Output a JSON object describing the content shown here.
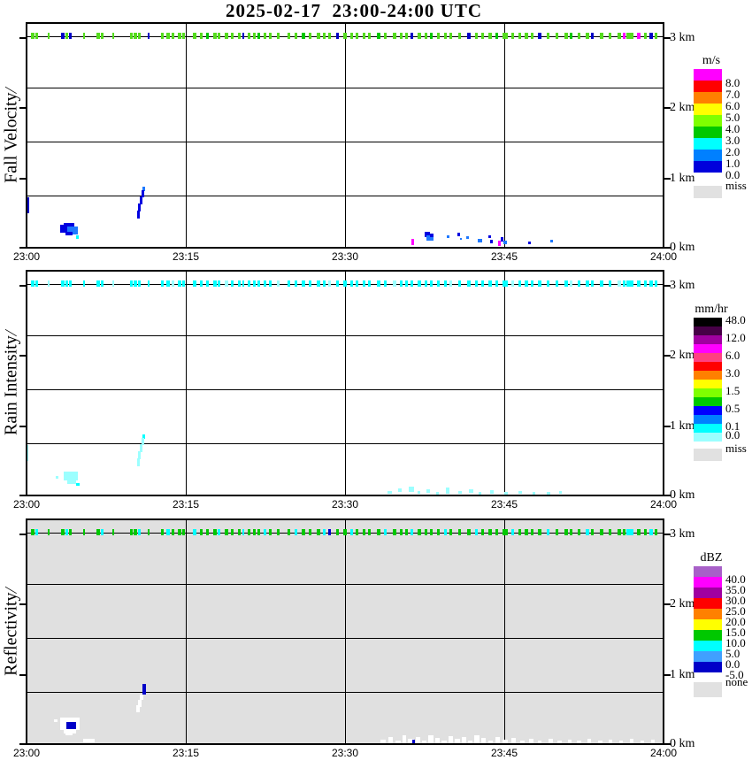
{
  "title": "2025-02-17  23:00-24:00 UTC",
  "time_ticks": [
    "23:00",
    "23:15",
    "23:30",
    "23:45",
    "24:00"
  ],
  "km_ticks": [
    "3 km",
    "2 km",
    "1 km",
    "0 km"
  ],
  "palette": {
    "N": "#0000E0",
    "B": "#0000C8",
    "D": "#1E78FF",
    "C": "#00FFFF",
    "P": "#9BFFFF",
    "W": "#FFFFFF",
    "M": "#FF00FF",
    "G": "#00C800",
    "Y": "#55DC1E"
  },
  "speckle_segments": [
    [
      5,
      4
    ],
    [
      10,
      3
    ],
    [
      24,
      2
    ],
    [
      39,
      4
    ],
    [
      44,
      3
    ],
    [
      48,
      3
    ],
    [
      64,
      2
    ],
    [
      79,
      4
    ],
    [
      84,
      3
    ],
    [
      97,
      2
    ],
    [
      117,
      3
    ],
    [
      121,
      4
    ],
    [
      126,
      3
    ],
    [
      137,
      2
    ],
    [
      152,
      3
    ],
    [
      158,
      4
    ],
    [
      164,
      3
    ],
    [
      171,
      4
    ],
    [
      176,
      3
    ],
    [
      188,
      4
    ],
    [
      196,
      3
    ],
    [
      203,
      3
    ],
    [
      211,
      4
    ],
    [
      216,
      3
    ],
    [
      224,
      4
    ],
    [
      231,
      3
    ],
    [
      239,
      3
    ],
    [
      244,
      2
    ],
    [
      250,
      3
    ],
    [
      256,
      3
    ],
    [
      261,
      3
    ],
    [
      268,
      3
    ],
    [
      274,
      3
    ],
    [
      283,
      3
    ],
    [
      295,
      3
    ],
    [
      303,
      3
    ],
    [
      311,
      4
    ],
    [
      319,
      3
    ],
    [
      328,
      4
    ],
    [
      335,
      3
    ],
    [
      341,
      3
    ],
    [
      350,
      3
    ],
    [
      358,
      4
    ],
    [
      366,
      3
    ],
    [
      372,
      3
    ],
    [
      380,
      3
    ],
    [
      386,
      3
    ],
    [
      396,
      4
    ],
    [
      404,
      3
    ],
    [
      414,
      4
    ],
    [
      422,
      3
    ],
    [
      428,
      3
    ],
    [
      434,
      3
    ],
    [
      442,
      4
    ],
    [
      450,
      3
    ],
    [
      456,
      3
    ],
    [
      464,
      3
    ],
    [
      472,
      3
    ],
    [
      478,
      3
    ],
    [
      488,
      3
    ],
    [
      498,
      4
    ],
    [
      507,
      3
    ],
    [
      514,
      3
    ],
    [
      522,
      4
    ],
    [
      530,
      3
    ],
    [
      538,
      6
    ],
    [
      548,
      3
    ],
    [
      556,
      3
    ],
    [
      563,
      4
    ],
    [
      570,
      3
    ],
    [
      578,
      4
    ],
    [
      588,
      3
    ],
    [
      598,
      3
    ],
    [
      608,
      4
    ],
    [
      614,
      3
    ],
    [
      623,
      3
    ],
    [
      632,
      4
    ],
    [
      638,
      3
    ],
    [
      648,
      4
    ],
    [
      658,
      3
    ],
    [
      668,
      4
    ],
    [
      674,
      3
    ],
    [
      678,
      8
    ],
    [
      690,
      4
    ],
    [
      698,
      3
    ],
    [
      704,
      4
    ],
    [
      710,
      3
    ]
  ],
  "chart_data": [
    {
      "type": "heatmap",
      "name": "fall-velocity",
      "ylabel": "Fall Velocity",
      "ylabel_suffix": "/",
      "background": "#FFFFFF",
      "x_range": [
        "23:00",
        "24:00"
      ],
      "y_range_km": [
        0,
        3.25
      ],
      "summary": "Thin broken echo line at 3 km all hour (3-5 m/s, green); weak echoes 0-1 m/s (blue) below 1 km near 23:03-23:12; scattered near-surface dots 23:36-23:52.",
      "colorbar": {
        "units": "m/s",
        "colors": [
          "#FF00FF",
          "#FF0000",
          "#FF8000",
          "#FFFF00",
          "#7FFF00",
          "#00C800",
          "#00FFFF",
          "#0080FF",
          "#0000DC"
        ],
        "labels": [
          [
            1,
            "8.0"
          ],
          [
            2,
            "7.0"
          ],
          [
            3,
            "6.0"
          ],
          [
            4,
            "5.0"
          ],
          [
            5,
            "4.0"
          ],
          [
            6,
            "3.0"
          ],
          [
            7,
            "2.0"
          ],
          [
            8,
            "1.0"
          ],
          [
            9,
            "0.0"
          ]
        ],
        "missing": {
          "label": "miss",
          "color": "#E1E1E1"
        }
      },
      "speckle": {
        "default": "Y",
        "overrides": {
          "3": "B",
          "5": "B",
          "13": "B",
          "21": "G",
          "27": "B",
          "30": "G",
          "36": "G",
          "41": "B",
          "47": "G",
          "52": "B",
          "55": "G",
          "60": "B",
          "64": "G",
          "70": "B",
          "74": "G",
          "77": "B",
          "81": "M",
          "83": "M",
          "85": "B"
        }
      },
      "features": [
        [
          0,
          197,
          3,
          18,
          "B"
        ],
        [
          42,
          226,
          12,
          4,
          "N"
        ],
        [
          38,
          228,
          10,
          9,
          "N"
        ],
        [
          46,
          230,
          12,
          9,
          "D"
        ],
        [
          44,
          236,
          8,
          4,
          "N"
        ],
        [
          56,
          240,
          3,
          4,
          "C"
        ],
        [
          131,
          185,
          3,
          5,
          "D"
        ],
        [
          130,
          189,
          3,
          8,
          "N"
        ],
        [
          128,
          196,
          3,
          9,
          "N"
        ],
        [
          126,
          204,
          3,
          9,
          "N"
        ],
        [
          125,
          212,
          3,
          9,
          "N"
        ],
        [
          435,
          244,
          3,
          7,
          "M"
        ],
        [
          450,
          236,
          6,
          6,
          "N"
        ],
        [
          452,
          240,
          8,
          6,
          "D"
        ],
        [
          456,
          238,
          4,
          4,
          "N"
        ],
        [
          475,
          240,
          3,
          3,
          "D"
        ],
        [
          487,
          237,
          3,
          4,
          "N"
        ],
        [
          490,
          243,
          2,
          2,
          "D"
        ],
        [
          497,
          241,
          3,
          3,
          "D"
        ],
        [
          510,
          244,
          5,
          4,
          "D"
        ],
        [
          522,
          240,
          3,
          3,
          "N"
        ],
        [
          524,
          245,
          3,
          4,
          "N"
        ],
        [
          533,
          246,
          3,
          6,
          "M"
        ],
        [
          536,
          242,
          3,
          5,
          "N"
        ],
        [
          539,
          246,
          4,
          4,
          "D"
        ],
        [
          567,
          247,
          3,
          3,
          "N"
        ],
        [
          592,
          245,
          3,
          3,
          "D"
        ]
      ]
    },
    {
      "type": "heatmap",
      "name": "rain-intensity",
      "ylabel": "Rain Intensity",
      "ylabel_suffix": "/",
      "background": "#FFFFFF",
      "x_range": [
        "23:00",
        "24:00"
      ],
      "y_range_km": [
        0,
        3.25
      ],
      "summary": "Cyan trace line (0.0-0.1 mm/hr) at 3 km all hour; pale-cyan trace cells below 1 km near 23:03-23:12 and near surface 23:34-23:50.",
      "colorbar": {
        "units": "mm/hr",
        "colors": [
          "#000000",
          "#460046",
          "#A000A0",
          "#FF00FF",
          "#FF4080",
          "#FF0000",
          "#FF8000",
          "#FFFF00",
          "#7FFF00",
          "#00C800",
          "#0000FF",
          "#0080FF",
          "#00FFFF",
          "#9BFFFF"
        ],
        "labels": [
          [
            0,
            "48.0"
          ],
          [
            2,
            "12.0"
          ],
          [
            4,
            "6.0"
          ],
          [
            6,
            "3.0"
          ],
          [
            8,
            "1.5"
          ],
          [
            10,
            "0.5"
          ],
          [
            12,
            "0.1"
          ],
          [
            13,
            "0.0"
          ]
        ],
        "missing": {
          "label": "miss",
          "color": "#E1E1E1"
        }
      },
      "speckle": {
        "default": "C",
        "overrides": {
          "2": "P",
          "9": "P",
          "16": "P",
          "24": "P",
          "33": "P",
          "40": "P",
          "49": "P",
          "58": "P",
          "66": "P",
          "74": "P",
          "80": "P"
        }
      },
      "features": [
        [
          0,
          197,
          2,
          18,
          "P"
        ],
        [
          33,
          232,
          3,
          3,
          "P"
        ],
        [
          42,
          227,
          16,
          10,
          "P"
        ],
        [
          46,
          236,
          10,
          5,
          "P"
        ],
        [
          56,
          240,
          4,
          3,
          "C"
        ],
        [
          131,
          185,
          3,
          5,
          "C"
        ],
        [
          130,
          189,
          3,
          8,
          "P"
        ],
        [
          128,
          196,
          3,
          9,
          "P"
        ],
        [
          126,
          204,
          3,
          9,
          "P"
        ],
        [
          125,
          212,
          3,
          9,
          "P"
        ],
        [
          408,
          249,
          5,
          3,
          "P"
        ],
        [
          420,
          246,
          4,
          4,
          "P"
        ],
        [
          432,
          244,
          6,
          6,
          "P"
        ],
        [
          442,
          249,
          3,
          3,
          "P"
        ],
        [
          452,
          247,
          4,
          4,
          "P"
        ],
        [
          463,
          250,
          3,
          3,
          "P"
        ],
        [
          474,
          245,
          4,
          7,
          "P"
        ],
        [
          488,
          249,
          4,
          3,
          "P"
        ],
        [
          500,
          247,
          5,
          4,
          "P"
        ],
        [
          511,
          250,
          3,
          3,
          "P"
        ],
        [
          524,
          248,
          4,
          4,
          "P"
        ],
        [
          540,
          250,
          4,
          3,
          "P"
        ],
        [
          556,
          249,
          4,
          3,
          "P"
        ],
        [
          572,
          250,
          3,
          3,
          "P"
        ],
        [
          588,
          250,
          4,
          3,
          "P"
        ],
        [
          602,
          249,
          3,
          3,
          "P"
        ]
      ]
    },
    {
      "type": "heatmap",
      "name": "reflectivity",
      "ylabel": "Reflectivity",
      "ylabel_suffix": "/",
      "background": "#E0E0E0",
      "x_range": [
        "23:00",
        "24:00"
      ],
      "y_range_km": [
        0,
        3.25
      ],
      "summary": "Gray 'none' background; green/cyan (5-15 dBZ) broken line at 3 km; white sub-threshold patches with navy (-5-0 dBZ) cores near 23:04 and 23:11 below 1 km; white speckle strip along surface 23:33-24:00.",
      "colorbar": {
        "units": "dBZ",
        "colors": [
          "#A860C8",
          "#FF00FF",
          "#A000A0",
          "#FF0000",
          "#FF8000",
          "#FFFF00",
          "#00C800",
          "#00FFFF",
          "#40A0FF",
          "#0000C8"
        ],
        "labels": [
          [
            1,
            "40.0"
          ],
          [
            2,
            "35.0"
          ],
          [
            3,
            "30.0"
          ],
          [
            4,
            "25.0"
          ],
          [
            5,
            "20.0"
          ],
          [
            6,
            "15.0"
          ],
          [
            7,
            "10.0"
          ],
          [
            8,
            "5.0"
          ],
          [
            9,
            "0.0"
          ],
          [
            10,
            "-5.0"
          ]
        ],
        "missing": {
          "label": "none",
          "color": "#E1E1E1"
        }
      },
      "speckle": {
        "default": "G",
        "overrides": {
          "1": "C",
          "4": "C",
          "8": "C",
          "12": "C",
          "15": "C",
          "19": "C",
          "23": "C",
          "27": "C",
          "31": "C",
          "35": "C",
          "39": "C",
          "40": "B",
          "43": "C",
          "48": "C",
          "52": "C",
          "57": "C",
          "61": "C",
          "66": "C",
          "71": "C",
          "76": "C",
          "82": "C",
          "85": "C"
        }
      },
      "features": [
        [
          31,
          226,
          4,
          3,
          "W"
        ],
        [
          38,
          224,
          22,
          14,
          "W"
        ],
        [
          42,
          236,
          14,
          6,
          "W"
        ],
        [
          44,
          241,
          8,
          3,
          "W"
        ],
        [
          45,
          229,
          11,
          8,
          "B"
        ],
        [
          64,
          248,
          13,
          4,
          "W"
        ],
        [
          131,
          186,
          4,
          12,
          "B"
        ],
        [
          128,
          198,
          4,
          6,
          "W"
        ],
        [
          126,
          204,
          4,
          8,
          "W"
        ],
        [
          124,
          210,
          4,
          8,
          "W"
        ],
        [
          400,
          249,
          6,
          4,
          "W"
        ],
        [
          409,
          246,
          5,
          7,
          "W"
        ],
        [
          417,
          250,
          6,
          3,
          "W"
        ],
        [
          425,
          244,
          4,
          9,
          "W"
        ],
        [
          431,
          248,
          7,
          5,
          "W"
        ],
        [
          436,
          249,
          3,
          4,
          "B"
        ],
        [
          440,
          246,
          5,
          7,
          "W"
        ],
        [
          447,
          250,
          5,
          3,
          "W"
        ],
        [
          454,
          244,
          6,
          9,
          "W"
        ],
        [
          462,
          247,
          5,
          6,
          "W"
        ],
        [
          469,
          250,
          6,
          3,
          "W"
        ],
        [
          477,
          245,
          5,
          8,
          "W"
        ],
        [
          484,
          248,
          6,
          5,
          "W"
        ],
        [
          492,
          246,
          5,
          7,
          "W"
        ],
        [
          499,
          250,
          5,
          3,
          "W"
        ],
        [
          506,
          244,
          6,
          9,
          "W"
        ],
        [
          514,
          247,
          5,
          6,
          "W"
        ],
        [
          522,
          250,
          5,
          3,
          "W"
        ],
        [
          530,
          246,
          5,
          7,
          "W"
        ],
        [
          538,
          249,
          6,
          4,
          "W"
        ],
        [
          548,
          247,
          5,
          6,
          "W"
        ],
        [
          558,
          250,
          5,
          3,
          "W"
        ],
        [
          568,
          248,
          5,
          5,
          "W"
        ],
        [
          578,
          250,
          4,
          3,
          "W"
        ],
        [
          590,
          248,
          5,
          5,
          "W"
        ],
        [
          600,
          250,
          5,
          3,
          "W"
        ],
        [
          612,
          249,
          4,
          4,
          "W"
        ],
        [
          622,
          250,
          5,
          3,
          "W"
        ],
        [
          634,
          248,
          4,
          5,
          "W"
        ],
        [
          646,
          250,
          5,
          3,
          "W"
        ],
        [
          658,
          249,
          4,
          4,
          "W"
        ],
        [
          670,
          250,
          4,
          3,
          "W"
        ],
        [
          682,
          248,
          4,
          5,
          "W"
        ],
        [
          694,
          250,
          4,
          3,
          "W"
        ],
        [
          706,
          249,
          4,
          4,
          "W"
        ]
      ]
    }
  ]
}
